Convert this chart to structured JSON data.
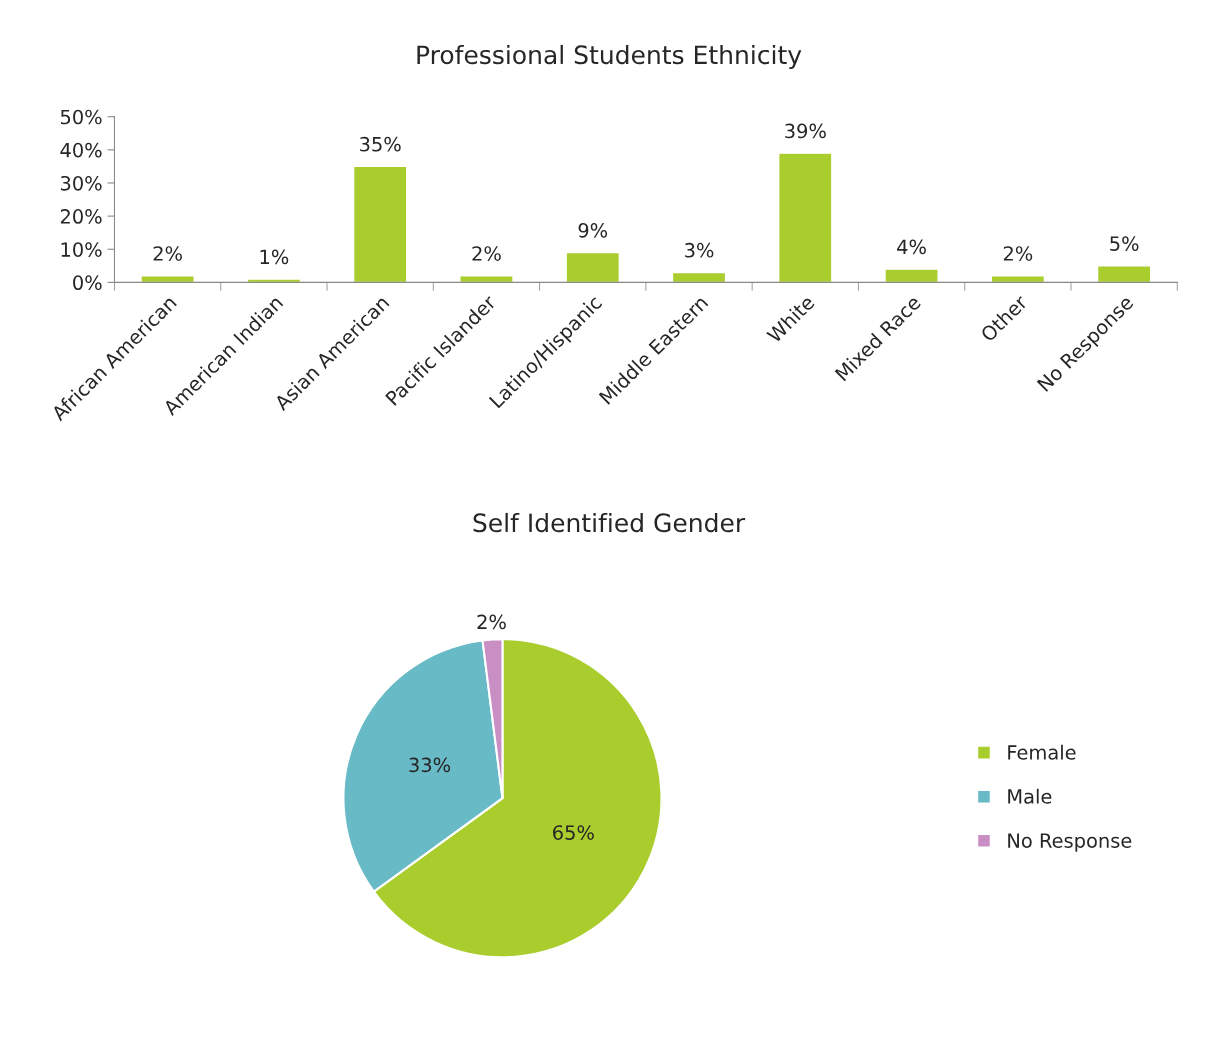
{
  "chart_data": [
    {
      "type": "bar",
      "title": "Professional Students Ethnicity",
      "categories": [
        "African American",
        "American Indian",
        "Asian American",
        "Pacific Islander",
        "Latino/Hispanic",
        "Middle Eastern",
        "White",
        "Mixed Race",
        "Other",
        "No Response"
      ],
      "values": [
        2,
        1,
        35,
        2,
        9,
        3,
        39,
        4,
        2,
        5
      ],
      "value_labels": [
        "2%",
        "1%",
        "35%",
        "2%",
        "9%",
        "3%",
        "39%",
        "4%",
        "2%",
        "5%"
      ],
      "color": "#a8cd2c",
      "ylim": [
        0,
        50
      ],
      "yticks": [
        {
          "value": 0,
          "label": "0%"
        },
        {
          "value": 10,
          "label": "10%"
        },
        {
          "value": 20,
          "label": "20%"
        },
        {
          "value": 30,
          "label": "30%"
        },
        {
          "value": 40,
          "label": "40%"
        },
        {
          "value": 50,
          "label": "50%"
        }
      ],
      "grid": false
    },
    {
      "type": "pie",
      "title": "Self Identified Gender",
      "categories": [
        "Female",
        "Male",
        "No Response"
      ],
      "values": [
        65,
        33,
        2
      ],
      "value_labels": [
        "65%",
        "33%",
        "2%"
      ],
      "colors": [
        "#a8cd2c",
        "#67bac6",
        "#c98fc4"
      ],
      "legend": "right"
    }
  ]
}
